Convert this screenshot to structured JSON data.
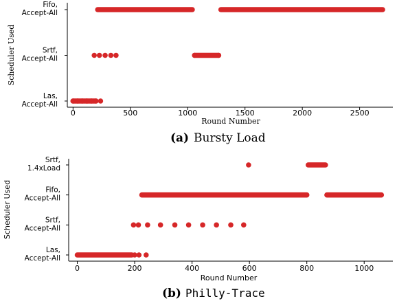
{
  "colors": {
    "marker": "#d62728"
  },
  "chart_data": [
    {
      "type": "scatter",
      "caption_label": "(a)",
      "caption_text": "Bursty Load",
      "xlabel": "Round Number",
      "ylabel": "Scheduler Used",
      "xlim": [
        -50,
        2790
      ],
      "xticks": [
        0,
        500,
        1000,
        1500,
        2000,
        2500
      ],
      "categories": [
        [
          "Las,",
          "Accept-All"
        ],
        [
          "Srtf,",
          "Accept-All"
        ],
        [
          "Fifo,",
          "Accept-All"
        ]
      ],
      "points": [
        {
          "x": 0,
          "y": 0
        },
        {
          "x": 40,
          "y": 0
        },
        {
          "x": 80,
          "y": 0
        },
        {
          "x": 120,
          "y": 0
        },
        {
          "x": 160,
          "y": 0
        },
        {
          "x": 200,
          "y": 0
        },
        {
          "x": 240,
          "y": 0
        },
        {
          "x": 185,
          "y": 1
        },
        {
          "x": 230,
          "y": 1
        },
        {
          "x": 280,
          "y": 1
        },
        {
          "x": 330,
          "y": 1
        },
        {
          "x": 375,
          "y": 1
        },
        {
          "x": 1060,
          "y": 1
        },
        {
          "x": 1270,
          "y": 1
        }
      ],
      "segments": [
        {
          "x1": 0,
          "x2": 200,
          "y": 0
        },
        {
          "x1": 1060,
          "x2": 1270,
          "y": 1
        },
        {
          "x1": 215,
          "x2": 1040,
          "y": 2
        },
        {
          "x1": 1290,
          "x2": 2700,
          "y": 2
        }
      ]
    },
    {
      "type": "scatter",
      "caption_label": "(b)",
      "caption_text": "Philly-Trace",
      "xlabel": "Round Number",
      "ylabel": "Scheduler Used",
      "xlim": [
        -30,
        1100
      ],
      "xticks": [
        0,
        200,
        400,
        600,
        800,
        1000
      ],
      "categories": [
        [
          "Las,",
          "Accept-All"
        ],
        [
          "Srtf,",
          "Accept-All"
        ],
        [
          "Fifo,",
          "Accept-All"
        ],
        [
          "Srtf,",
          "1.4xLoad"
        ]
      ],
      "points": [
        {
          "x": 200,
          "y": 0
        },
        {
          "x": 215,
          "y": 0
        },
        {
          "x": 240,
          "y": 0
        },
        {
          "x": 196,
          "y": 1
        },
        {
          "x": 213,
          "y": 1
        },
        {
          "x": 245,
          "y": 1
        },
        {
          "x": 290,
          "y": 1
        },
        {
          "x": 340,
          "y": 1
        },
        {
          "x": 388,
          "y": 1
        },
        {
          "x": 437,
          "y": 1
        },
        {
          "x": 485,
          "y": 1
        },
        {
          "x": 535,
          "y": 1
        },
        {
          "x": 580,
          "y": 1
        },
        {
          "x": 597,
          "y": 3
        }
      ],
      "segments": [
        {
          "x1": 0,
          "x2": 190,
          "y": 0
        },
        {
          "x1": 225,
          "x2": 800,
          "y": 2
        },
        {
          "x1": 870,
          "x2": 1060,
          "y": 2
        },
        {
          "x1": 805,
          "x2": 865,
          "y": 3
        }
      ]
    }
  ]
}
